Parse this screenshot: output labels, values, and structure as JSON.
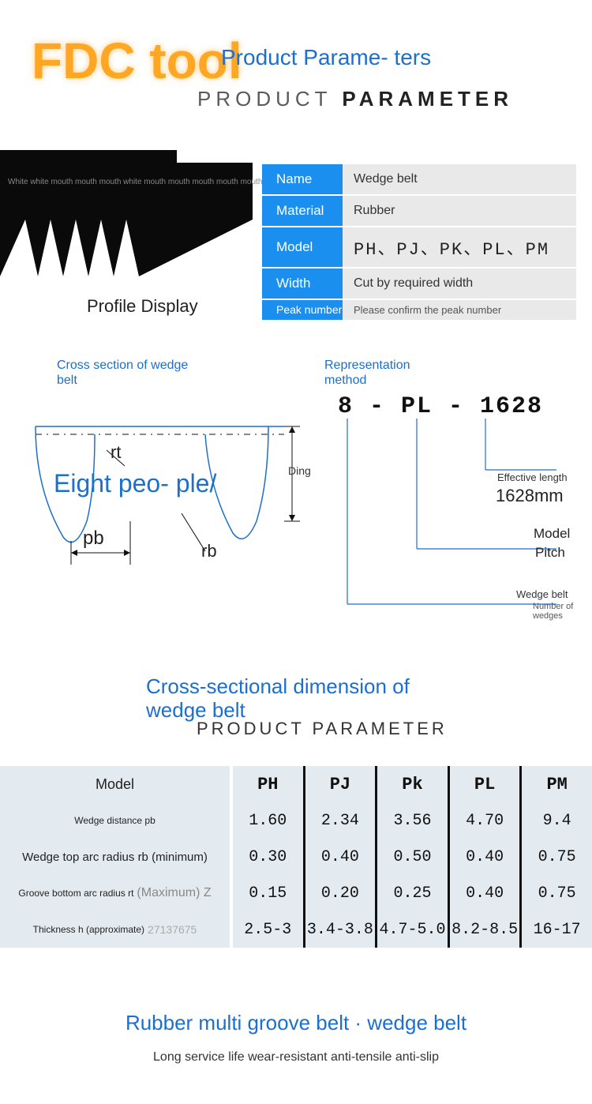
{
  "logo": "FDC tool",
  "header": {
    "title_cn": "Product Parame-\nters",
    "title_en_light": "PRODUCT ",
    "title_en_bold": "PARAMETER"
  },
  "profile": {
    "belt_overlay": "White white mouth mouth mouth white mouth mouth mouth mouth mouth",
    "caption": "Profile Display"
  },
  "specs": {
    "rows": [
      {
        "key": "Name",
        "val": "Wedge belt",
        "key_cls": "",
        "val_cls": ""
      },
      {
        "key": "Material",
        "val": "Rubber",
        "key_cls": "",
        "val_cls": ""
      },
      {
        "key": "Model",
        "val": "PH、PJ、PK、PL、PM",
        "key_cls": "",
        "val_cls": "big"
      },
      {
        "key": "Width",
        "val": "Cut by required width",
        "key_cls": "",
        "val_cls": ""
      },
      {
        "key": "Peak number",
        "val": "Please confirm the peak number",
        "key_cls": "small",
        "val_cls": "small"
      }
    ]
  },
  "cross_section_label": "Cross section of wedge belt",
  "repr_label": "Representation method",
  "diagram": {
    "main_text": "Eight peo-\nple/",
    "ding": "Ding",
    "rt": "rt",
    "pb": "pb",
    "rb": "rb",
    "stroke": "#1b6fce"
  },
  "repr": {
    "code": "8  -  PL - 1628",
    "eff_label": "Effective length",
    "eff_val": "1628mm",
    "model_label": "Model",
    "model_val": "Pitch",
    "wedge_label": "Wedge belt",
    "wedge_val": "Number of wedges",
    "line_color": "#1b6fce"
  },
  "dim": {
    "title_cn": "Cross-sectional dimension of wedge belt",
    "title_en": "PRODUCT PARAMETER",
    "columns": [
      "PH",
      "PJ",
      "Pk",
      "PL",
      "PM"
    ],
    "label_model": "Model",
    "rows": [
      {
        "label": "Wedge distance pb",
        "cls": "small",
        "vals": [
          "1.60",
          "2.34",
          "3.56",
          "4.70",
          "9.4"
        ]
      },
      {
        "label": "Wedge top arc radius rb (minimum)",
        "cls": "",
        "vals": [
          "0.30",
          "0.40",
          "0.50",
          "0.40",
          "0.75"
        ]
      },
      {
        "label": "Groove bottom arc radius rt",
        "label_extra": "(Maximum) Z",
        "cls": "small",
        "vals": [
          "0.15",
          "0.20",
          "0.25",
          "0.40",
          "0.75"
        ]
      },
      {
        "label": "Thickness h (approximate)",
        "label_num": "27137675",
        "cls": "small",
        "vals": [
          "2.5-3",
          "3.4-3.8",
          "4.7-5.0",
          "8.2-8.5",
          "16-17"
        ]
      }
    ]
  },
  "footer": {
    "title": "Rubber multi groove belt · wedge belt",
    "sub": "Long service life wear-resistant anti-tensile anti-slip"
  },
  "colors": {
    "accent_blue": "#1b6fce",
    "header_blue": "#1b8fef",
    "logo_orange": "#ffa723",
    "grey_bg": "#e9e9e9",
    "table_bg": "#e4ebf0"
  }
}
